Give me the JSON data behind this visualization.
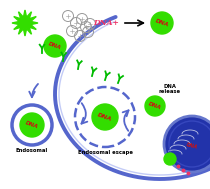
{
  "bg_color": "#ffffff",
  "green_color": "#33dd00",
  "red_color": "#cc1111",
  "blue_membrane": "#5566cc",
  "blue_light": "#8899ee",
  "pink_text": "#ee3366",
  "nucleus_fill": "#3344aa",
  "nucleus_outline": "#6677cc",
  "label_endosomal": "Endosomal",
  "label_endosomal_escape": "Endosomal escape",
  "label_dna_release": "DNA\nrelease",
  "green_receptor": "#00bb00",
  "white": "#ffffff",
  "gray_ring": "#999999"
}
